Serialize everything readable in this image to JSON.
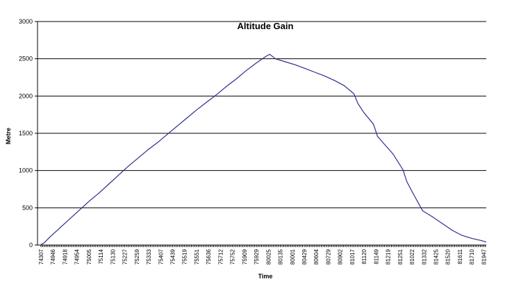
{
  "chart_data": {
    "type": "line",
    "title": "Altitude Gain",
    "xlabel": "Time",
    "ylabel": "Metre",
    "ylim": [
      0,
      3000
    ],
    "yticks": [
      0,
      500,
      1000,
      1500,
      2000,
      2500,
      3000
    ],
    "grid": true,
    "legend": "none",
    "colors": {
      "series": "#2b2b8c"
    },
    "xtick_labels": [
      "74307",
      "74946",
      "74918",
      "74954",
      "75005",
      "75114",
      "75130",
      "75227",
      "75259",
      "75333",
      "75407",
      "75439",
      "75519",
      "75551",
      "75636",
      "75712",
      "75752",
      "75909",
      "75929",
      "80025",
      "80135",
      "80001",
      "80429",
      "80604",
      "80729",
      "80902",
      "81017",
      "81120",
      "81149",
      "81219",
      "81251",
      "81022",
      "81332",
      "81425",
      "81520",
      "81611",
      "81710",
      "81947"
    ],
    "series": [
      {
        "values": [
          [
            0,
            0
          ],
          [
            0.4,
            30
          ],
          [
            1,
            110
          ],
          [
            2,
            230
          ],
          [
            3,
            350
          ],
          [
            4,
            470
          ],
          [
            5,
            590
          ],
          [
            6,
            700
          ],
          [
            7,
            820
          ],
          [
            8,
            940
          ],
          [
            9,
            1060
          ],
          [
            10,
            1170
          ],
          [
            11,
            1280
          ],
          [
            12,
            1380
          ],
          [
            13,
            1490
          ],
          [
            14,
            1600
          ],
          [
            15,
            1710
          ],
          [
            16,
            1820
          ],
          [
            17,
            1920
          ],
          [
            18,
            2020
          ],
          [
            19,
            2130
          ],
          [
            20,
            2230
          ],
          [
            21,
            2340
          ],
          [
            22,
            2440
          ],
          [
            23,
            2530
          ],
          [
            23.4,
            2560
          ],
          [
            24,
            2500
          ],
          [
            25,
            2460
          ],
          [
            26,
            2420
          ],
          [
            27,
            2370
          ],
          [
            28,
            2320
          ],
          [
            29,
            2270
          ],
          [
            30,
            2210
          ],
          [
            31,
            2140
          ],
          [
            32,
            2030
          ],
          [
            32.4,
            1900
          ],
          [
            33,
            1780
          ],
          [
            34,
            1620
          ],
          [
            34.4,
            1460
          ],
          [
            35,
            1370
          ],
          [
            36,
            1220
          ],
          [
            37,
            1010
          ],
          [
            37.4,
            850
          ],
          [
            38,
            700
          ],
          [
            39,
            460
          ],
          [
            40,
            380
          ],
          [
            41,
            290
          ],
          [
            42,
            200
          ],
          [
            43,
            130
          ],
          [
            44,
            90
          ],
          [
            45,
            60
          ],
          [
            45.5,
            40
          ]
        ]
      }
    ]
  }
}
